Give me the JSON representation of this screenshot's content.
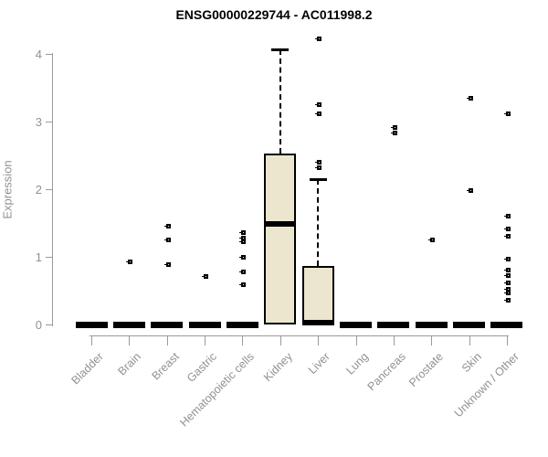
{
  "title": "ENSG00000229744 - AC011998.2",
  "chart_data": {
    "type": "boxplot",
    "title": "ENSG00000229744 - AC011998.2",
    "xlabel": "",
    "ylabel": "Expression",
    "ylim": [
      0,
      4.35
    ],
    "yticks": [
      0,
      1,
      2,
      3,
      4
    ],
    "grid": false,
    "legend": "none",
    "box_fill_color": "#ece6ce",
    "box_border_color": "#000000",
    "axis_color": "#9a9a9a",
    "label_color": "#919191",
    "point_symbol": "small-black-square",
    "categories": [
      "Bladder",
      "Brain",
      "Breast",
      "Gastric",
      "Hematopoietic cells",
      "Kidney",
      "Liver",
      "Lung",
      "Pancreas",
      "Prostate",
      "Skin",
      "Unknown / Other"
    ],
    "series": [
      {
        "category": "Bladder",
        "q1": 0,
        "median": 0,
        "q3": 0,
        "whisker_low": 0,
        "whisker_high": 0,
        "collapsed": true,
        "outliers": []
      },
      {
        "category": "Brain",
        "q1": 0,
        "median": 0,
        "q3": 0,
        "whisker_low": 0,
        "whisker_high": 0,
        "collapsed": true,
        "outliers": [
          0.93
        ]
      },
      {
        "category": "Breast",
        "q1": 0,
        "median": 0,
        "q3": 0,
        "whisker_low": 0,
        "whisker_high": 0,
        "collapsed": true,
        "outliers": [
          1.46,
          1.26,
          0.89
        ]
      },
      {
        "category": "Gastric",
        "q1": 0,
        "median": 0,
        "q3": 0,
        "whisker_low": 0,
        "whisker_high": 0,
        "collapsed": true,
        "outliers": [
          0.72
        ]
      },
      {
        "category": "Hematopoietic cells",
        "q1": 0,
        "median": 0,
        "q3": 0,
        "whisker_low": 0,
        "whisker_high": 0,
        "collapsed": true,
        "outliers": [
          1.36,
          1.29,
          1.23,
          1.0,
          0.79,
          0.59
        ]
      },
      {
        "category": "Kidney",
        "q1": 0,
        "median": 1.48,
        "q3": 2.53,
        "whisker_low": 0,
        "whisker_high": 4.07,
        "collapsed": false,
        "outliers": []
      },
      {
        "category": "Liver",
        "q1": 0,
        "median": 0.03,
        "q3": 0.87,
        "whisker_low": 0,
        "whisker_high": 2.15,
        "collapsed": false,
        "outliers": [
          4.23,
          3.26,
          3.12,
          2.41,
          2.33
        ]
      },
      {
        "category": "Lung",
        "q1": 0,
        "median": 0,
        "q3": 0,
        "whisker_low": 0,
        "whisker_high": 0,
        "collapsed": true,
        "outliers": []
      },
      {
        "category": "Pancreas",
        "q1": 0,
        "median": 0,
        "q3": 0,
        "whisker_low": 0,
        "whisker_high": 0,
        "collapsed": true,
        "outliers": [
          2.92,
          2.84
        ]
      },
      {
        "category": "Prostate",
        "q1": 0,
        "median": 0,
        "q3": 0,
        "whisker_low": 0,
        "whisker_high": 0,
        "collapsed": true,
        "outliers": [
          1.26
        ]
      },
      {
        "category": "Skin",
        "q1": 0,
        "median": 0,
        "q3": 0,
        "whisker_low": 0,
        "whisker_high": 0,
        "collapsed": true,
        "outliers": [
          3.35,
          1.98
        ]
      },
      {
        "category": "Unknown / Other",
        "q1": 0,
        "median": 0,
        "q3": 0,
        "whisker_low": 0,
        "whisker_high": 0,
        "collapsed": true,
        "outliers": [
          3.12,
          1.61,
          1.42,
          1.31,
          0.97,
          0.81,
          0.73,
          0.62,
          0.53,
          0.47,
          0.36
        ]
      }
    ]
  }
}
